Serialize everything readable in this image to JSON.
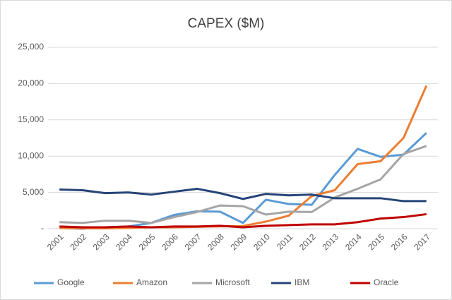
{
  "chart_data": {
    "type": "line",
    "title": "CAPEX ($M)",
    "categories": [
      "2001",
      "2002",
      "2003",
      "2004",
      "2005",
      "2006",
      "2007",
      "2008",
      "2009",
      "2010",
      "2011",
      "2012",
      "2013",
      "2014",
      "2015",
      "2016",
      "2017"
    ],
    "series": [
      {
        "name": "Google",
        "color": "#5b9bd5",
        "values": [
          100,
          0,
          200,
          300,
          800,
          1900,
          2400,
          2350,
          800,
          4000,
          3400,
          3300,
          7400,
          11000,
          9900,
          10200,
          13200
        ]
      },
      {
        "name": "Amazon",
        "color": "#ed7d31",
        "values": [
          100,
          50,
          50,
          100,
          200,
          200,
          250,
          330,
          370,
          980,
          1800,
          4500,
          5300,
          8900,
          9300,
          12500,
          19700
        ]
      },
      {
        "name": "Microsoft",
        "color": "#a5a5a5",
        "values": [
          900,
          800,
          1100,
          1100,
          800,
          1600,
          2300,
          3200,
          3100,
          1950,
          2350,
          2300,
          4300,
          5500,
          6800,
          10300,
          11400
        ]
      },
      {
        "name": "IBM",
        "color": "#264478",
        "values": [
          5400,
          5300,
          4900,
          5000,
          4700,
          5100,
          5500,
          4900,
          4100,
          4800,
          4600,
          4700,
          4200,
          4200,
          4200,
          3800,
          3800
        ]
      },
      {
        "name": "Oracle",
        "color": "#c00000",
        "values": [
          300,
          200,
          200,
          300,
          200,
          300,
          300,
          400,
          200,
          400,
          500,
          600,
          600,
          900,
          1400,
          1600,
          2000
        ]
      }
    ],
    "ylim": [
      0,
      25000
    ],
    "yticks": [
      {
        "value": 0,
        "label": "-"
      },
      {
        "value": 5000,
        "label": "5,000"
      },
      {
        "value": 10000,
        "label": "10,000"
      },
      {
        "value": 15000,
        "label": "15,000"
      },
      {
        "value": 20000,
        "label": "20,000"
      },
      {
        "value": 25000,
        "label": "25,000"
      }
    ],
    "grid": true,
    "legend": "bottom"
  }
}
